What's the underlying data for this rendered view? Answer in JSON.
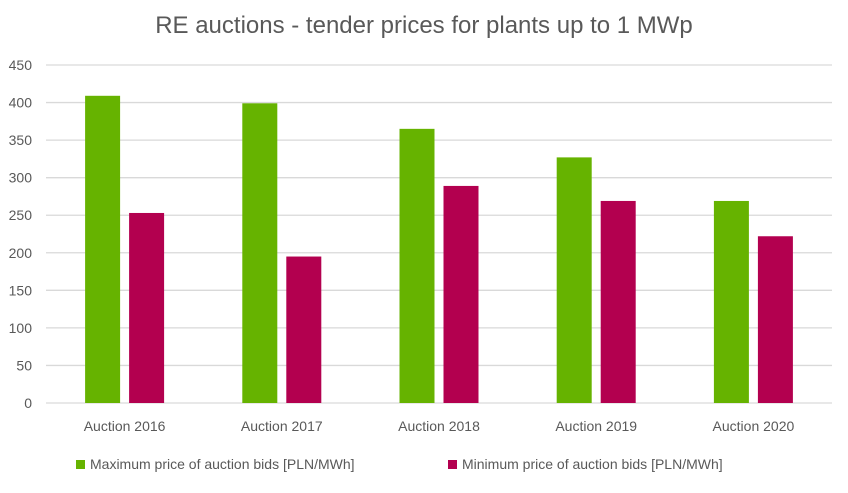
{
  "chart_data": {
    "type": "bar",
    "title": "RE auctions - tender prices for plants up to 1 MWp",
    "xlabel": "",
    "ylabel": "",
    "categories": [
      "Auction 2016",
      "Auction 2017",
      "Auction 2018",
      "Auction 2019",
      "Auction 2020"
    ],
    "series": [
      {
        "name": "Maximum price of auction bids [PLN/MWh]",
        "color": "#66b300",
        "values": [
          409,
          399,
          365,
          327,
          269
        ]
      },
      {
        "name": "Minimum price of auction bids [PLN/MWh]",
        "color": "#b3004f",
        "values": [
          253,
          195,
          289,
          269,
          222
        ]
      }
    ],
    "ylim": [
      0,
      450
    ],
    "yticks": [
      0,
      50,
      100,
      150,
      200,
      250,
      300,
      350,
      400,
      450
    ],
    "grid": true,
    "legend": "bottom"
  }
}
